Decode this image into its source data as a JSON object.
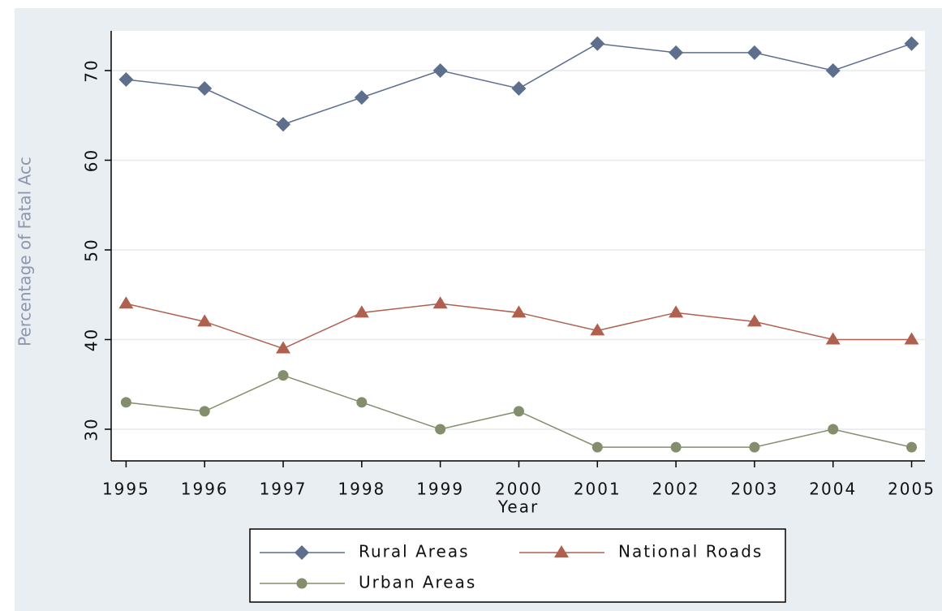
{
  "chart_data": {
    "type": "line",
    "x_label": "Year",
    "y_label": "Percentage of Fatal Acc",
    "x": [
      1995,
      1996,
      1997,
      1998,
      1999,
      2000,
      2001,
      2002,
      2003,
      2004,
      2005
    ],
    "xlim": [
      1994.81,
      2005.17
    ],
    "xticks": [
      1995,
      1996,
      1997,
      1998,
      1999,
      2000,
      2001,
      2002,
      2003,
      2004,
      2005
    ],
    "ylim": [
      26.47,
      74.43
    ],
    "yticks": [
      30,
      40,
      50,
      60,
      70
    ],
    "grid": true,
    "series": [
      {
        "name": "Rural Areas",
        "color": "#5d6f8c",
        "marker": "diamond",
        "values": [
          69,
          68,
          64,
          67,
          70,
          68,
          73,
          72,
          72,
          70,
          73
        ]
      },
      {
        "name": "National Roads",
        "color": "#b0604f",
        "marker": "triangle",
        "values": [
          44,
          42,
          39,
          43,
          44,
          43,
          41,
          43,
          42,
          40,
          40
        ]
      },
      {
        "name": "Urban Areas",
        "color": "#838f6c",
        "marker": "circle",
        "values": [
          33,
          32,
          36,
          33,
          30,
          32,
          28,
          28,
          28,
          30,
          28
        ]
      }
    ]
  }
}
